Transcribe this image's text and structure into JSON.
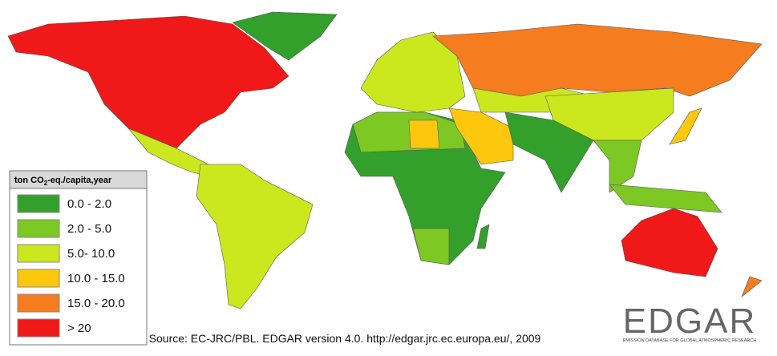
{
  "legend": {
    "title": {
      "prefix": "ton CO",
      "subscript": "2",
      "suffix": "-eq./capita,year"
    },
    "items": [
      {
        "label": "0.0 - 2.0",
        "color": "#33a02c"
      },
      {
        "label": "2.0 - 5.0",
        "color": "#7dc823"
      },
      {
        "label": "5.0- 10.0",
        "color": "#cbe81f"
      },
      {
        "label": "10.0 - 15.0",
        "color": "#fdc70e"
      },
      {
        "label": "15.0 - 20.0",
        "color": "#f57c1f"
      },
      {
        "label": "> 20",
        "color": "#f01818"
      }
    ]
  },
  "source": "Source: EC-JRC/PBL. EDGAR version 4.0. http://edgar.jrc.ec.europa.eu/, 2009",
  "logo": {
    "name": "EDGAR",
    "tagline": "EMISSION DATABASE FOR GLOBAL ATMOSPHERIC RESEARCH"
  }
}
